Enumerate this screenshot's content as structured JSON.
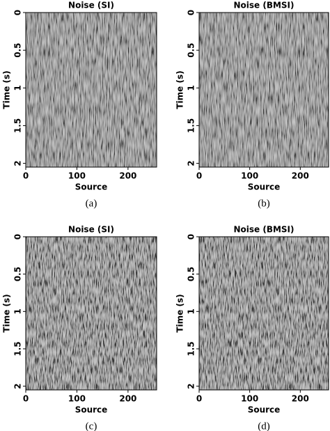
{
  "chart_data": [
    {
      "type": "image",
      "title": "Noise (SI)",
      "xlabel": "Source",
      "ylabel": "Time (s)",
      "caption": "(a)",
      "xlim": [
        0,
        256
      ],
      "xticks": [
        0,
        100,
        200
      ],
      "ylim": [
        0,
        2.05
      ],
      "yticks": [
        0,
        0.5,
        1,
        1.5,
        2
      ],
      "y_inverted": true
    },
    {
      "type": "image",
      "title": "Noise (BMSI)",
      "xlabel": "Source",
      "ylabel": "Time (s)",
      "caption": "(b)",
      "xlim": [
        0,
        256
      ],
      "xticks": [
        0,
        100,
        200
      ],
      "ylim": [
        0,
        2.05
      ],
      "yticks": [
        0,
        0.5,
        1,
        1.5,
        2
      ],
      "y_inverted": true
    },
    {
      "type": "image",
      "title": "Noise (SI)",
      "xlabel": "Source",
      "ylabel": "Time (s)",
      "caption": "(c)",
      "xlim": [
        0,
        256
      ],
      "xticks": [
        0,
        100,
        200
      ],
      "ylim": [
        0,
        2.05
      ],
      "yticks": [
        0,
        0.5,
        1,
        1.5,
        2
      ],
      "y_inverted": true
    },
    {
      "type": "image",
      "title": "Noise (BMSI)",
      "xlabel": "Source",
      "ylabel": "Time (s)",
      "caption": "(d)",
      "xlim": [
        0,
        256
      ],
      "xticks": [
        0,
        100,
        200
      ],
      "ylim": [
        0,
        2.05
      ],
      "yticks": [
        0,
        0.5,
        1,
        1.5,
        2
      ],
      "y_inverted": true
    }
  ]
}
